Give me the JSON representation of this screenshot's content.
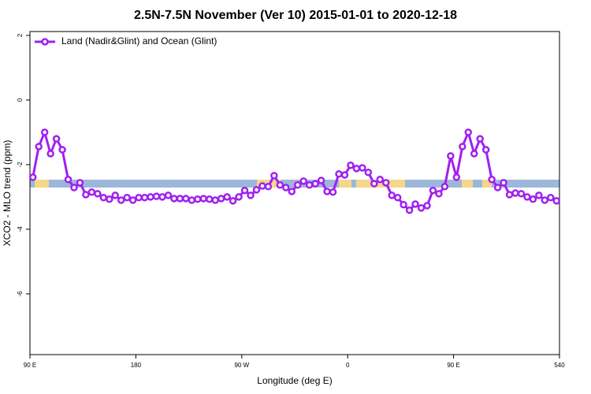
{
  "chart_data": {
    "type": "line",
    "title": "2.5N-7.5N November (Ver 10)   2015-01-01 to 2020-12-18",
    "x_label": "Longitude (deg E)",
    "y_label": "XCO2 - MLO trend (ppm)",
    "xlim": [
      90,
      540
    ],
    "xticks": [
      {
        "value": 90,
        "label": "90 E"
      },
      180,
      {
        "value": 270,
        "label": "90 W"
      },
      {
        "value": 360,
        "label": "0"
      },
      {
        "value": 450,
        "label": "90 E"
      },
      540
    ],
    "ylim": [
      -7.88,
      2.12
    ],
    "yticks": [
      2,
      0,
      -2,
      -4,
      -6
    ],
    "legend": "top-left",
    "series": [
      {
        "name": "Land (Nadir&Glint) and Ocean (Glint)",
        "color": "#a020f0",
        "x": [
          92.5,
          97.5,
          102.5,
          107.5,
          112.5,
          117.5,
          122.5,
          127.5,
          132.5,
          137.5,
          142.5,
          147.5,
          152.5,
          157.5,
          162.5,
          167.5,
          172.5,
          177.5,
          182.5,
          187.5,
          192.5,
          197.5,
          202.5,
          207.5,
          212.5,
          217.5,
          222.5,
          227.5,
          232.5,
          237.5,
          242.5,
          247.5,
          252.5,
          257.5,
          262.5,
          267.5,
          272.5,
          277.5,
          282.5,
          287.5,
          292.5,
          297.5,
          302.5,
          307.5,
          312.5,
          317.5,
          322.5,
          327.5,
          332.5,
          337.5,
          342.5,
          347.5,
          352.5,
          357.5,
          362.5,
          367.5,
          372.5,
          377.5,
          382.5,
          387.5,
          392.5,
          397.5,
          402.5,
          407.5,
          412.5,
          417.5,
          422.5,
          427.5,
          432.5,
          437.5,
          442.5,
          447.5,
          452.5,
          457.5,
          462.5,
          467.5,
          472.5,
          477.5,
          482.5,
          487.5,
          492.5,
          497.5,
          502.5,
          507.5,
          512.5,
          517.5,
          522.5,
          527.5,
          532.5,
          537.5
        ],
        "values": [
          -2.39,
          -1.44,
          -1.0,
          -1.66,
          -1.2,
          -1.54,
          -2.46,
          -2.71,
          -2.56,
          -2.93,
          -2.85,
          -2.9,
          -3.02,
          -3.07,
          -2.95,
          -3.1,
          -3.02,
          -3.1,
          -3.02,
          -3.02,
          -3.0,
          -2.98,
          -3.0,
          -2.95,
          -3.05,
          -3.05,
          -3.05,
          -3.1,
          -3.07,
          -3.05,
          -3.07,
          -3.1,
          -3.05,
          -3.0,
          -3.12,
          -3.0,
          -2.8,
          -2.95,
          -2.78,
          -2.66,
          -2.68,
          -2.34,
          -2.63,
          -2.71,
          -2.83,
          -2.63,
          -2.51,
          -2.63,
          -2.59,
          -2.49,
          -2.83,
          -2.85,
          -2.29,
          -2.32,
          -2.02,
          -2.12,
          -2.1,
          -2.24,
          -2.59,
          -2.46,
          -2.56,
          -2.95,
          -3.02,
          -3.24,
          -3.41,
          -3.22,
          -3.34,
          -3.27,
          -2.8,
          -2.9,
          -2.68,
          -1.73,
          -2.39,
          -1.44,
          -1.0,
          -1.66,
          -1.2,
          -1.54,
          -2.46,
          -2.71,
          -2.56,
          -2.93,
          -2.88,
          -2.9,
          -3.0,
          -3.07,
          -2.95,
          -3.1,
          -3.02,
          -3.12
        ]
      }
    ]
  }
}
